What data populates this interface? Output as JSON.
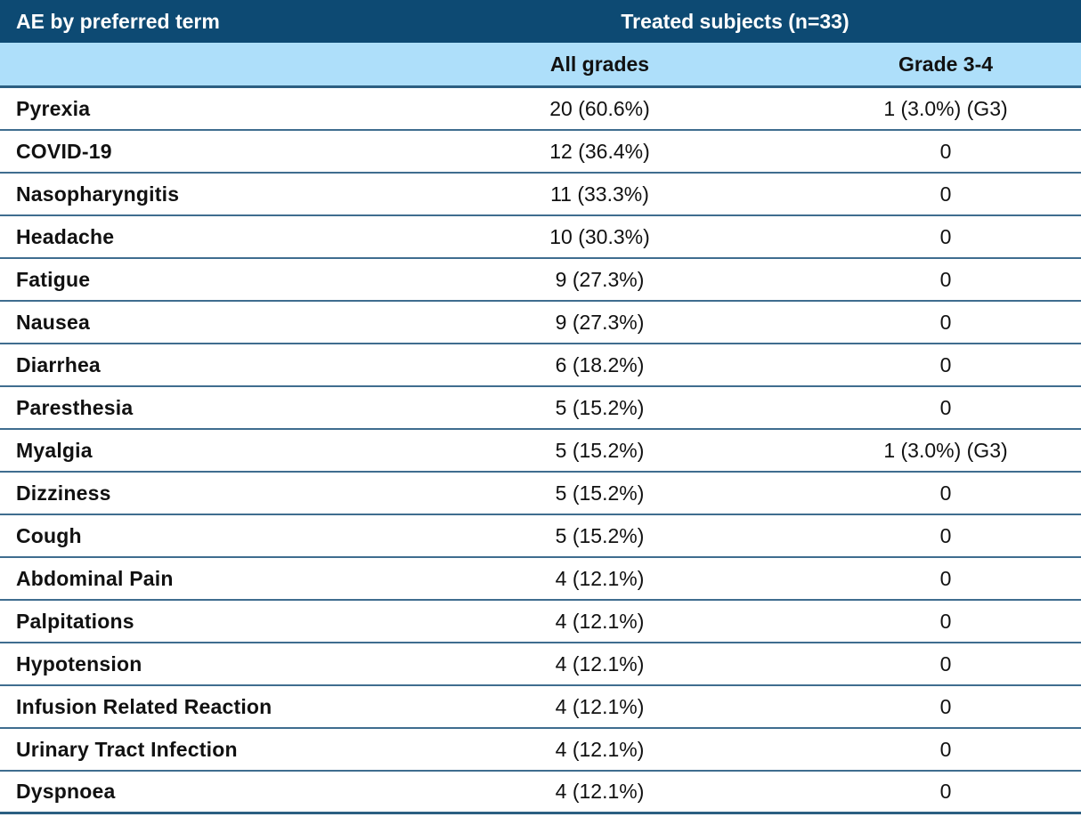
{
  "table": {
    "header": {
      "col1": "AE by preferred term",
      "group": "Treated subjects (n=33)"
    },
    "subheader": {
      "all_grades": "All grades",
      "grade_3_4": "Grade 3-4"
    },
    "rows": [
      {
        "term": "Pyrexia",
        "all_grades": "20 (60.6%)",
        "grade_3_4": "1 (3.0%) (G3)"
      },
      {
        "term": "COVID-19",
        "all_grades": "12 (36.4%)",
        "grade_3_4": "0"
      },
      {
        "term": "Nasopharyngitis",
        "all_grades": "11 (33.3%)",
        "grade_3_4": "0"
      },
      {
        "term": "Headache",
        "all_grades": "10 (30.3%)",
        "grade_3_4": "0"
      },
      {
        "term": "Fatigue",
        "all_grades": "9 (27.3%)",
        "grade_3_4": "0"
      },
      {
        "term": "Nausea",
        "all_grades": "9 (27.3%)",
        "grade_3_4": "0"
      },
      {
        "term": "Diarrhea",
        "all_grades": "6 (18.2%)",
        "grade_3_4": "0"
      },
      {
        "term": "Paresthesia",
        "all_grades": "5 (15.2%)",
        "grade_3_4": "0"
      },
      {
        "term": "Myalgia",
        "all_grades": "5 (15.2%)",
        "grade_3_4": "1 (3.0%) (G3)"
      },
      {
        "term": "Dizziness",
        "all_grades": "5 (15.2%)",
        "grade_3_4": "0"
      },
      {
        "term": "Cough",
        "all_grades": "5 (15.2%)",
        "grade_3_4": "0"
      },
      {
        "term": "Abdominal Pain",
        "all_grades": "4 (12.1%)",
        "grade_3_4": "0"
      },
      {
        "term": "Palpitations",
        "all_grades": "4 (12.1%)",
        "grade_3_4": "0"
      },
      {
        "term": "Hypotension",
        "all_grades": "4 (12.1%)",
        "grade_3_4": "0"
      },
      {
        "term": "Infusion Related Reaction",
        "all_grades": "4 (12.1%)",
        "grade_3_4": "0"
      },
      {
        "term": "Urinary Tract Infection",
        "all_grades": "4 (12.1%)",
        "grade_3_4": "0"
      },
      {
        "term": "Dyspnoea",
        "all_grades": "4 (12.1%)",
        "grade_3_4": "0"
      }
    ]
  },
  "colors": {
    "header_bg": "#0d4a73",
    "subheader_bg": "#aedffa",
    "row_line": "#3f6d8f",
    "strong_line": "#2c5f82",
    "header_text": "#ffffff",
    "body_text": "#111111"
  },
  "chart_data": {
    "type": "table",
    "title": "AE by preferred term — Treated subjects (n=33)",
    "column_group": {
      "label": "Treated subjects (n=33)",
      "spans": [
        "All grades",
        "Grade 3-4"
      ]
    },
    "columns": [
      "AE by preferred term",
      "All grades",
      "Grade 3-4"
    ],
    "rows": [
      [
        "Pyrexia",
        "20 (60.6%)",
        "1 (3.0%) (G3)"
      ],
      [
        "COVID-19",
        "12 (36.4%)",
        "0"
      ],
      [
        "Nasopharyngitis",
        "11 (33.3%)",
        "0"
      ],
      [
        "Headache",
        "10 (30.3%)",
        "0"
      ],
      [
        "Fatigue",
        "9 (27.3%)",
        "0"
      ],
      [
        "Nausea",
        "9 (27.3%)",
        "0"
      ],
      [
        "Diarrhea",
        "6 (18.2%)",
        "0"
      ],
      [
        "Paresthesia",
        "5 (15.2%)",
        "0"
      ],
      [
        "Myalgia",
        "5 (15.2%)",
        "1 (3.0%) (G3)"
      ],
      [
        "Dizziness",
        "5 (15.2%)",
        "0"
      ],
      [
        "Cough",
        "5 (15.2%)",
        "0"
      ],
      [
        "Abdominal Pain",
        "4 (12.1%)",
        "0"
      ],
      [
        "Palpitations",
        "4 (12.1%)",
        "0"
      ],
      [
        "Hypotension",
        "4 (12.1%)",
        "0"
      ],
      [
        "Infusion Related Reaction",
        "4 (12.1%)",
        "0"
      ],
      [
        "Urinary Tract Infection",
        "4 (12.1%)",
        "0"
      ],
      [
        "Dyspnoea",
        "4 (12.1%)",
        "0"
      ]
    ],
    "counts_n": [
      20,
      12,
      11,
      10,
      9,
      9,
      6,
      5,
      5,
      5,
      5,
      4,
      4,
      4,
      4,
      4,
      4
    ],
    "percents_all_grades": [
      60.6,
      36.4,
      33.3,
      30.3,
      27.3,
      27.3,
      18.2,
      15.2,
      15.2,
      15.2,
      15.2,
      12.1,
      12.1,
      12.1,
      12.1,
      12.1,
      12.1
    ],
    "grade_3_4_counts": [
      1,
      0,
      0,
      0,
      0,
      0,
      0,
      0,
      1,
      0,
      0,
      0,
      0,
      0,
      0,
      0,
      0
    ]
  }
}
